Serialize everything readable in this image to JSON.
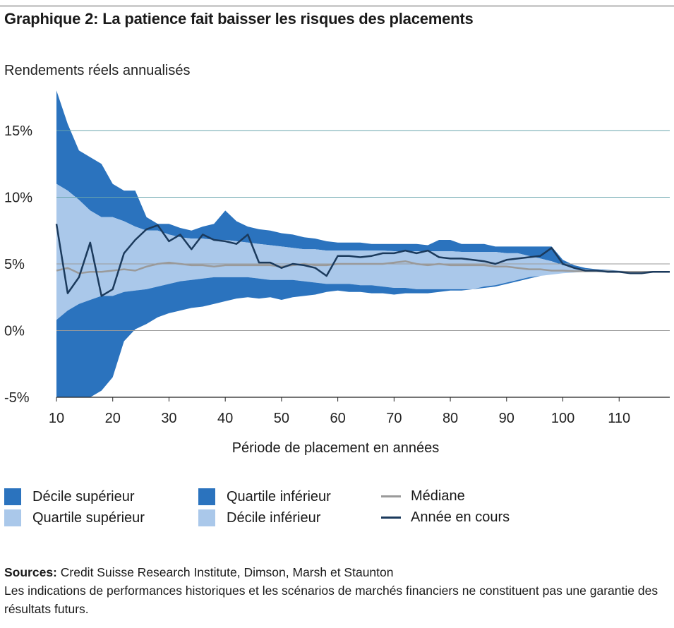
{
  "title": "Graphique 2: La patience fait baisser les risques des placements",
  "colors": {
    "dark_band": "#2b73be",
    "light_band": "#aac8ea",
    "median": "#9a9a9a",
    "current": "#1b3a5c",
    "hgrid": "#6aa5ad",
    "zero": "#9a9a9a"
  },
  "chart_data": {
    "type": "area",
    "ylabel": "Rendements réels annualisés",
    "xlabel": "Période de placement en années",
    "xlim": [
      10,
      119
    ],
    "ylim": [
      -5,
      18
    ],
    "xticks": [
      10,
      20,
      30,
      40,
      50,
      60,
      70,
      80,
      90,
      100,
      110
    ],
    "yticks": [
      15,
      10,
      5,
      0,
      -5
    ],
    "ytick_labels": [
      "15%",
      "10%",
      "5%",
      "0%",
      "-5%"
    ],
    "x": [
      10,
      12,
      14,
      16,
      18,
      20,
      22,
      24,
      26,
      28,
      30,
      32,
      34,
      36,
      38,
      40,
      42,
      44,
      46,
      48,
      50,
      52,
      54,
      56,
      58,
      60,
      62,
      64,
      66,
      68,
      70,
      72,
      74,
      76,
      78,
      80,
      82,
      84,
      86,
      88,
      90,
      92,
      94,
      96,
      98,
      100,
      102,
      104,
      106,
      108,
      110,
      112,
      114,
      116,
      119
    ],
    "series": [
      {
        "name": "Décile supérieur",
        "values": [
          18.0,
          15.5,
          13.5,
          13.0,
          12.5,
          11.0,
          10.5,
          10.5,
          8.5,
          8.0,
          8.0,
          7.7,
          7.5,
          7.8,
          8.0,
          9.0,
          8.2,
          7.8,
          7.6,
          7.5,
          7.3,
          7.2,
          7.0,
          6.9,
          6.7,
          6.6,
          6.6,
          6.6,
          6.5,
          6.5,
          6.5,
          6.5,
          6.5,
          6.4,
          6.8,
          6.8,
          6.5,
          6.5,
          6.5,
          6.3,
          6.3,
          6.3,
          6.3,
          6.3,
          6.3,
          5.3,
          4.9,
          4.7,
          4.6,
          4.55,
          4.5,
          4.45,
          4.45,
          4.45,
          4.45
        ]
      },
      {
        "name": "Quartile supérieur",
        "values": [
          11.0,
          10.5,
          9.8,
          9.0,
          8.5,
          8.5,
          8.2,
          7.8,
          7.5,
          7.5,
          7.2,
          7.0,
          6.9,
          6.9,
          6.8,
          6.8,
          6.7,
          6.6,
          6.5,
          6.4,
          6.3,
          6.2,
          6.1,
          6.1,
          6.0,
          6.0,
          6.0,
          6.0,
          6.0,
          6.0,
          5.95,
          5.95,
          5.95,
          5.95,
          5.95,
          5.95,
          5.9,
          5.9,
          5.9,
          5.9,
          5.8,
          5.8,
          5.6,
          5.4,
          5.2,
          4.9,
          4.7,
          4.6,
          4.55,
          4.5,
          4.5,
          4.45,
          4.45,
          4.45,
          4.45
        ]
      },
      {
        "name": "Médiane",
        "values": [
          4.5,
          4.7,
          4.3,
          4.4,
          4.4,
          4.5,
          4.6,
          4.5,
          4.8,
          5.0,
          5.1,
          5.0,
          4.9,
          4.9,
          4.8,
          4.9,
          4.9,
          4.9,
          4.9,
          4.9,
          4.8,
          4.9,
          5.0,
          4.9,
          4.9,
          5.0,
          5.0,
          5.0,
          5.0,
          5.0,
          5.1,
          5.2,
          5.0,
          4.9,
          5.0,
          4.9,
          4.9,
          4.9,
          4.9,
          4.8,
          4.8,
          4.7,
          4.6,
          4.6,
          4.5,
          4.5,
          4.45,
          4.45,
          4.45,
          4.45,
          4.4,
          4.4,
          4.4,
          4.4,
          4.4
        ]
      },
      {
        "name": "Quartile inférieur",
        "values": [
          0.8,
          1.5,
          2.0,
          2.3,
          2.6,
          2.6,
          2.9,
          3.0,
          3.1,
          3.3,
          3.5,
          3.7,
          3.8,
          3.9,
          4.0,
          4.0,
          4.0,
          4.0,
          3.9,
          3.8,
          3.8,
          3.8,
          3.7,
          3.6,
          3.5,
          3.5,
          3.5,
          3.4,
          3.4,
          3.3,
          3.2,
          3.2,
          3.1,
          3.1,
          3.1,
          3.1,
          3.1,
          3.1,
          3.2,
          3.3,
          3.5,
          3.7,
          3.9,
          4.1,
          4.2,
          4.3,
          4.35,
          4.4,
          4.4,
          4.4,
          4.4,
          4.4,
          4.4,
          4.4,
          4.4
        ]
      },
      {
        "name": "Décile inférieur",
        "values": [
          -5.0,
          -5.0,
          -5.0,
          -5.0,
          -4.5,
          -3.5,
          -0.8,
          0.1,
          0.5,
          1.0,
          1.3,
          1.5,
          1.7,
          1.8,
          2.0,
          2.2,
          2.4,
          2.5,
          2.4,
          2.5,
          2.3,
          2.5,
          2.6,
          2.7,
          2.9,
          3.0,
          2.9,
          2.9,
          2.8,
          2.8,
          2.7,
          2.8,
          2.8,
          2.8,
          2.9,
          3.0,
          3.0,
          3.1,
          3.3,
          3.4,
          3.6,
          3.8,
          4.0,
          4.1,
          4.2,
          4.3,
          4.35,
          4.4,
          4.4,
          4.4,
          4.4,
          4.4,
          4.4,
          4.4,
          4.4
        ]
      },
      {
        "name": "Année en cours",
        "values": [
          8.0,
          2.8,
          4.0,
          6.6,
          2.6,
          3.1,
          5.8,
          6.8,
          7.6,
          7.9,
          6.7,
          7.2,
          6.1,
          7.2,
          6.8,
          6.7,
          6.5,
          7.2,
          5.1,
          5.1,
          4.7,
          5.0,
          4.9,
          4.7,
          4.1,
          5.6,
          5.6,
          5.5,
          5.6,
          5.8,
          5.8,
          6.0,
          5.8,
          6.0,
          5.5,
          5.4,
          5.4,
          5.3,
          5.2,
          5.0,
          5.3,
          5.4,
          5.5,
          5.6,
          6.2,
          5.0,
          4.7,
          4.5,
          4.5,
          4.4,
          4.4,
          4.3,
          4.3,
          4.4,
          4.4
        ]
      }
    ],
    "legend": [
      "Décile supérieur",
      "Quartile supérieur",
      "Quartile inférieur",
      "Décile inférieur",
      "Médiane",
      "Année en cours"
    ]
  },
  "legend_labels": {
    "decile_sup": "Décile supérieur",
    "quartile_sup": "Quartile supérieur",
    "quartile_inf": "Quartile inférieur",
    "decile_inf": "Décile inférieur",
    "mediane": "Médiane",
    "annee": "Année en cours"
  },
  "sources": {
    "label": "Sources:",
    "text": " Credit Suisse Research Institute, Dimson, Marsh et Staunton",
    "disclaimer": "Les indications de performances historiques et les scénarios de marchés financiers ne constituent pas une garantie des résultats futurs."
  }
}
